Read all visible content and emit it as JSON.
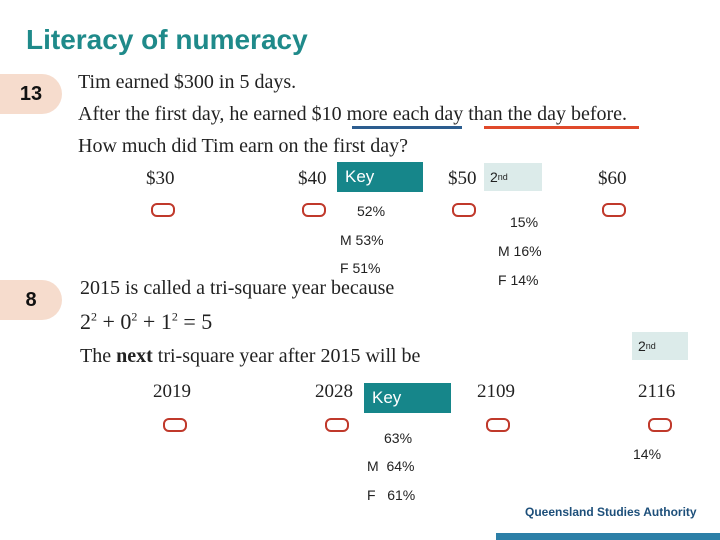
{
  "title": "Literacy of numeracy",
  "q13": {
    "number": "13",
    "line1": "Tim earned $300 in 5 days.",
    "line2": "After the first day, he earned $10 more each day than the day before.",
    "line3": "How much did Tim earn on the first day?",
    "options": [
      "$30",
      "$40",
      "$50",
      "$60"
    ],
    "key_label": "Key",
    "key_stats": [
      "52%",
      "M 53%",
      "F 51%"
    ],
    "second_label": "2",
    "second_sup": "nd",
    "second_stats": [
      "15%",
      "M 16%",
      "F 14%"
    ]
  },
  "q8": {
    "number": "8",
    "line1": "2015 is called a tri-square year because",
    "eq_parts": [
      "2",
      "2",
      " + 0",
      "2",
      " + 1",
      "2",
      " = 5"
    ],
    "line3_pre": "The ",
    "line3_bold": "next",
    "line3_post": " tri-square year after 2015 will be",
    "options": [
      "2019",
      "2028",
      "2109",
      "2116"
    ],
    "key_label": "Key",
    "key_stats": [
      "63%",
      "M  64%",
      "F   61%"
    ],
    "second_label": "2",
    "second_sup": "nd",
    "second_stats": [
      "14%"
    ]
  },
  "footer": {
    "brand": "Queensland Studies Authority"
  },
  "colors": {
    "title": "#1f8a8a",
    "key": "#16868a",
    "bubble": "#c0392b",
    "second_bg": "#dcebea",
    "underline_blue": "#2c5d8f",
    "underline_red": "#e0492a"
  }
}
